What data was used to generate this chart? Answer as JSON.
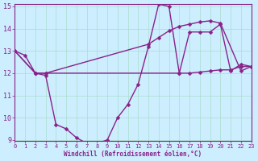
{
  "title": "",
  "xlabel": "Windchill (Refroidissement éolien,°C)",
  "ylabel": "",
  "background_color": "#cceeff",
  "line_color": "#882288",
  "grid_color": "#aaddcc",
  "ylim": [
    9,
    15
  ],
  "xlim": [
    0,
    23
  ],
  "yticks": [
    9,
    10,
    11,
    12,
    13,
    14,
    15
  ],
  "xticks": [
    0,
    1,
    2,
    3,
    4,
    5,
    6,
    7,
    8,
    9,
    10,
    11,
    12,
    13,
    14,
    15,
    16,
    17,
    18,
    19,
    20,
    21,
    22,
    23
  ],
  "series1_x": [
    0,
    1,
    2,
    3,
    4,
    5,
    6,
    7,
    8,
    9,
    10,
    11,
    12,
    13,
    14,
    15,
    16,
    17,
    18,
    19,
    20,
    21,
    22,
    23
  ],
  "series1_y": [
    13.0,
    12.8,
    12.0,
    11.9,
    9.7,
    9.5,
    9.1,
    8.85,
    8.85,
    9.0,
    10.0,
    10.6,
    11.5,
    13.2,
    15.1,
    15.0,
    12.0,
    13.85,
    13.85,
    13.85,
    14.2,
    12.1,
    12.4,
    12.3
  ],
  "series2_x": [
    0,
    2,
    3,
    13,
    14,
    15,
    16,
    17,
    18,
    19,
    20,
    22,
    23
  ],
  "series2_y": [
    13.0,
    12.0,
    12.0,
    13.3,
    13.6,
    13.9,
    14.1,
    14.2,
    14.3,
    14.35,
    14.25,
    12.1,
    12.3
  ],
  "series3_x": [
    0,
    2,
    3,
    16,
    17,
    18,
    19,
    20,
    21,
    22,
    23
  ],
  "series3_y": [
    13.0,
    12.0,
    12.0,
    12.0,
    12.0,
    12.05,
    12.1,
    12.15,
    12.15,
    12.3,
    12.3
  ],
  "marker_size": 2.5,
  "line_width": 1.0
}
